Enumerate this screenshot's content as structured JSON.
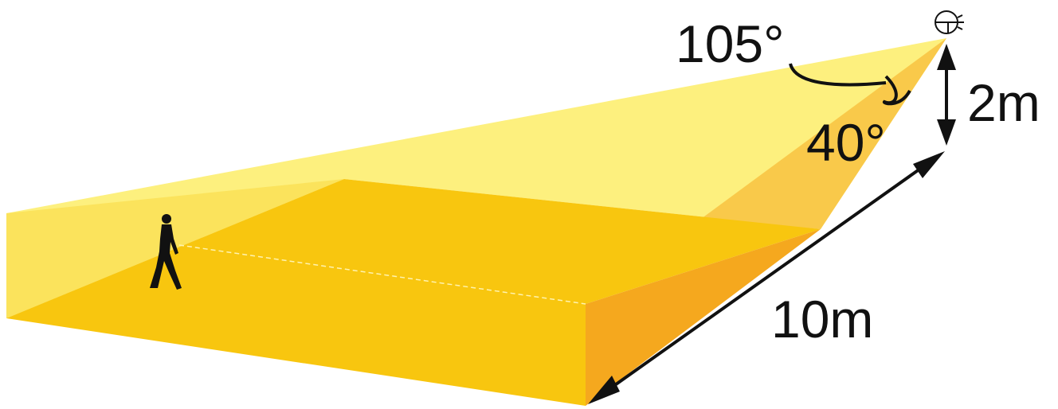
{
  "labels": {
    "horizontal_angle": "105°",
    "vertical_angle": "40°",
    "mount_height": "2m",
    "detection_range": "10m"
  },
  "colors": {
    "beam_light": "#fdf07e",
    "beam_upper_side": "#fbe35c",
    "floor": "#f8c60f",
    "near_side": "#f5a81e",
    "inner_side": "#f9c94a",
    "ink": "#111111"
  },
  "icons": {
    "sensor": "pir-sensor-icon",
    "person": "walking-person-icon"
  }
}
